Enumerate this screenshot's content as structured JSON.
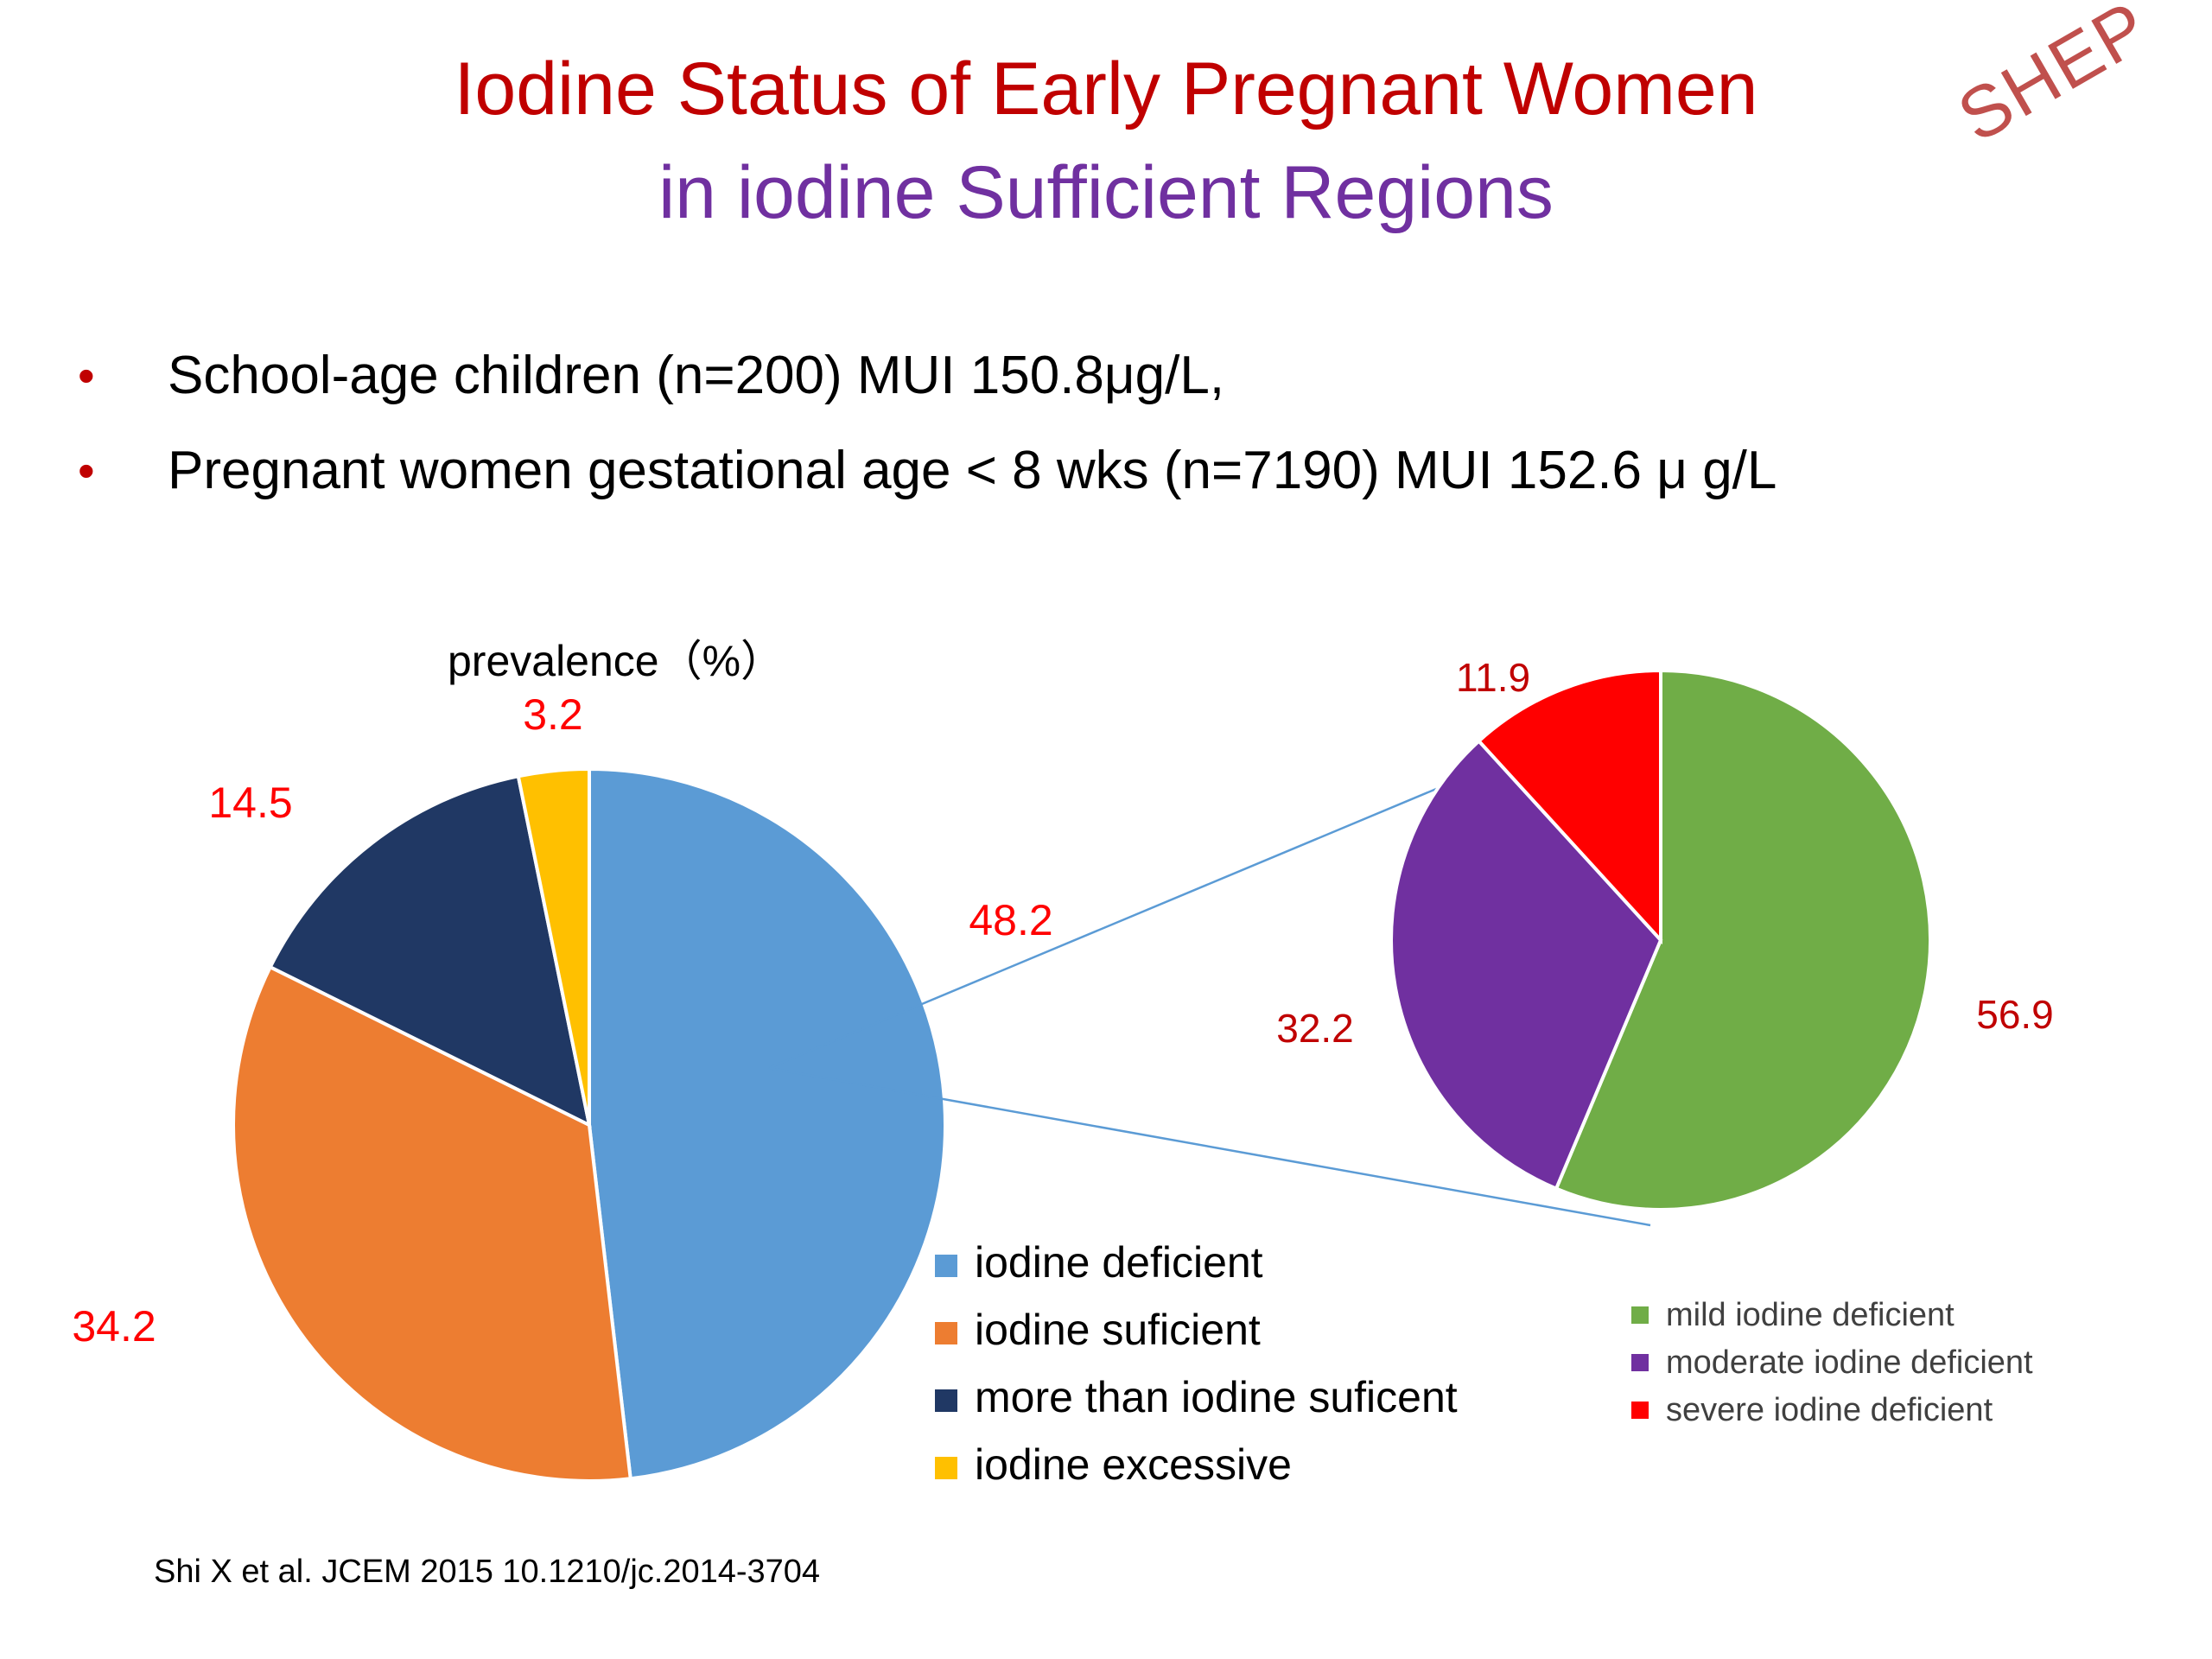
{
  "title_line1": "Iodine Status of Early Pregnant Women",
  "title_line2": "in iodine Sufficient Regions",
  "watermark": "SHEP",
  "bullets": [
    "School-age children (n=200) MUI  150.8μg/L,",
    "Pregnant women gestational age < 8 wks (n=7190)  MUI 152.6 μ g/L"
  ],
  "bullet_symbol": "•",
  "citation": "Shi X et al. JCEM 2015 10.1210/jc.2014-3704",
  "chart_data": [
    {
      "type": "pie",
      "title": "prevalence（%）",
      "categories": [
        "iodine deficient",
        "iodine suficient",
        "more than iodine suficent",
        "iodine excessive"
      ],
      "values": [
        48.2,
        34.2,
        14.5,
        3.2
      ],
      "colors": [
        "#5b9bd5",
        "#ed7d31",
        "#203864",
        "#ffc000"
      ],
      "data_labels": [
        "48.2",
        "34.2",
        "14.5",
        "3.2"
      ],
      "legend": "bottom-right",
      "data_label_color": "#ff0000"
    },
    {
      "type": "pie",
      "title": "",
      "categories": [
        "mild iodine deficient",
        "moderate iodine deficient",
        "severe iodine deficient"
      ],
      "values": [
        56.9,
        32.2,
        11.9
      ],
      "colors": [
        "#70ad47",
        "#7030a0",
        "#ff0000"
      ],
      "data_labels": [
        "56.9",
        "32.2",
        "11.9"
      ],
      "legend": "bottom",
      "data_label_color": "#c00000",
      "breakdown_of": "iodine deficient"
    }
  ]
}
